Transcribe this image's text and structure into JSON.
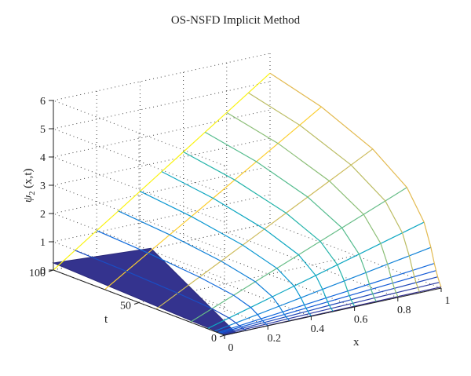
{
  "chart_data": {
    "type": "surface3d",
    "title": "OS-NSFD Implicit Method",
    "zlabel": "ψ",
    "zlabel_sub": "2",
    "zlabel_tail": " (x,t)",
    "xlabel": "x",
    "ylabel": "t",
    "x_range": [
      0,
      1
    ],
    "t_range": [
      0,
      100
    ],
    "z_range": [
      0,
      6
    ],
    "x_ticks": [
      "0",
      "0.2",
      "0.4",
      "0.6",
      "0.8",
      "1"
    ],
    "t_ticks": [
      "0",
      "50",
      "100"
    ],
    "z_ticks": [
      "0",
      "1",
      "2",
      "3",
      "4",
      "5",
      "6"
    ],
    "grid": true,
    "colormap": "parula",
    "surface": {
      "x": [
        0,
        0.1,
        0.2,
        0.3,
        0.4,
        0.5,
        0.6,
        0.7,
        0.8,
        0.9,
        1.0
      ],
      "t_mesh": [
        0,
        1,
        2,
        3,
        4,
        6,
        10,
        20,
        40,
        70,
        100
      ],
      "description_free_values_note": "",
      "psi2_at_x1": [
        0.04,
        0.18,
        0.35,
        0.55,
        0.78,
        1.3,
        2.1,
        3.1,
        4.0,
        4.8,
        5.3
      ]
    }
  }
}
